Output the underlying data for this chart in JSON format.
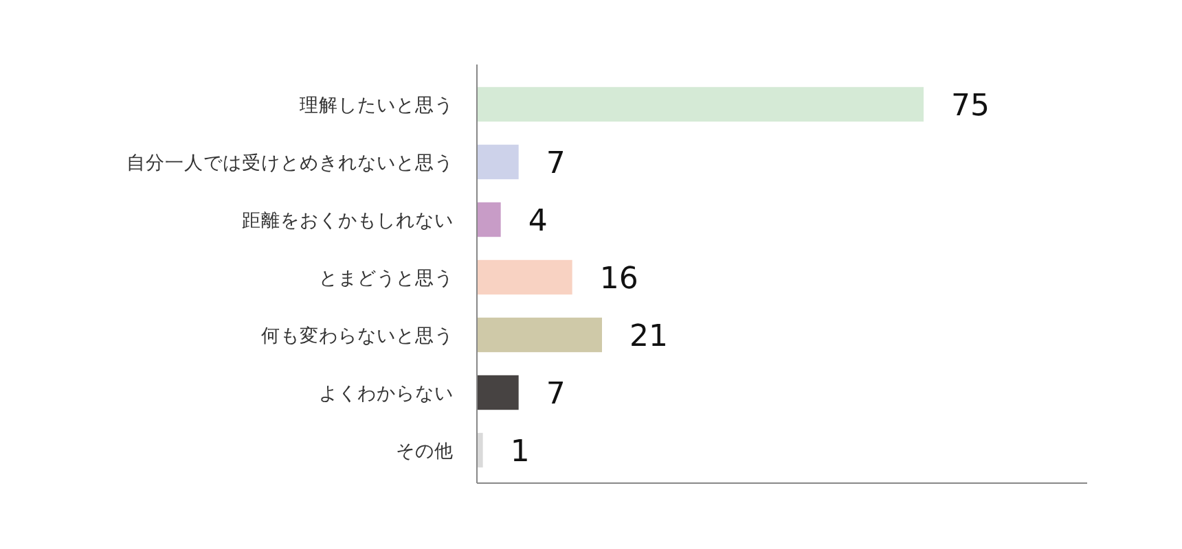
{
  "chart_data": {
    "type": "bar",
    "orientation": "horizontal",
    "categories": [
      "理解したいと思う",
      "自分一人では受けとめきれないと思う",
      "距離をおくかもしれない",
      "とまどうと思う",
      "何も変わらないと思う",
      "よくわからない",
      "その他"
    ],
    "values": [
      75,
      7,
      4,
      16,
      21,
      7,
      1
    ],
    "colors": [
      "#d5ead6",
      "#cdd2ea",
      "#c89cc7",
      "#f8d2c2",
      "#cfc9a8",
      "#474342",
      "#dadada"
    ],
    "data_labels": true
  }
}
